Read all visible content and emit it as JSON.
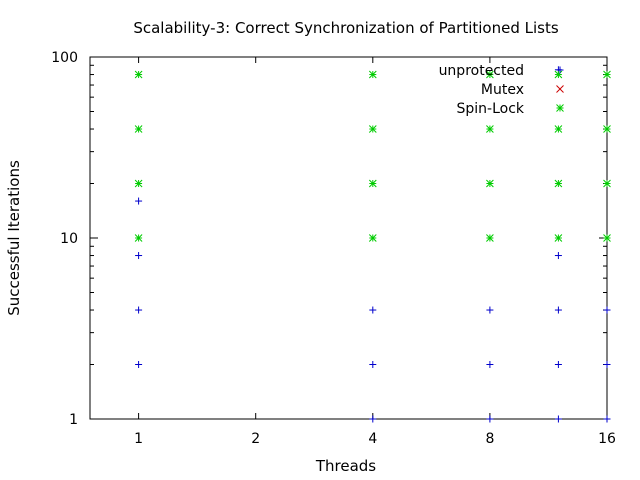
{
  "chart_data": {
    "type": "scatter",
    "title": "Scalability-3: Correct Synchronization of Partitioned Lists",
    "xlabel": "Threads",
    "ylabel": "Successful Iterations",
    "x_scale": "log2",
    "y_scale": "log10",
    "xlim": [
      0.75,
      16
    ],
    "ylim": [
      1,
      100
    ],
    "x_ticks": [
      1,
      2,
      4,
      8,
      16
    ],
    "x_tick_labels": [
      "1",
      "2",
      "4",
      "8",
      "16"
    ],
    "y_ticks": [
      1,
      10,
      100
    ],
    "y_tick_labels": [
      "1",
      "10",
      "100"
    ],
    "grid": false,
    "legend_position": "top-right",
    "series": [
      {
        "name": "unprotected",
        "color": "#0000cc",
        "marker": "plus",
        "points": [
          [
            1,
            2
          ],
          [
            1,
            4
          ],
          [
            1,
            8
          ],
          [
            1,
            16
          ],
          [
            4,
            1
          ],
          [
            4,
            2
          ],
          [
            4,
            4
          ],
          [
            8,
            1
          ],
          [
            8,
            2
          ],
          [
            8,
            4
          ],
          [
            12,
            1
          ],
          [
            12,
            2
          ],
          [
            12,
            4
          ],
          [
            12,
            8
          ],
          [
            12,
            85
          ],
          [
            16,
            1
          ],
          [
            16,
            2
          ],
          [
            16,
            4
          ]
        ]
      },
      {
        "name": "Mutex",
        "color": "#cc0000",
        "marker": "cross",
        "points": []
      },
      {
        "name": "Spin-Lock",
        "color": "#00cc00",
        "marker": "star",
        "points": [
          [
            1,
            10
          ],
          [
            1,
            20
          ],
          [
            1,
            40
          ],
          [
            1,
            80
          ],
          [
            4,
            10
          ],
          [
            4,
            20
          ],
          [
            4,
            40
          ],
          [
            4,
            80
          ],
          [
            8,
            10
          ],
          [
            8,
            20
          ],
          [
            8,
            40
          ],
          [
            8,
            80
          ],
          [
            12,
            10
          ],
          [
            12,
            20
          ],
          [
            12,
            40
          ],
          [
            12,
            80
          ],
          [
            16,
            10
          ],
          [
            16,
            20
          ],
          [
            16,
            40
          ],
          [
            16,
            80
          ]
        ]
      }
    ]
  }
}
